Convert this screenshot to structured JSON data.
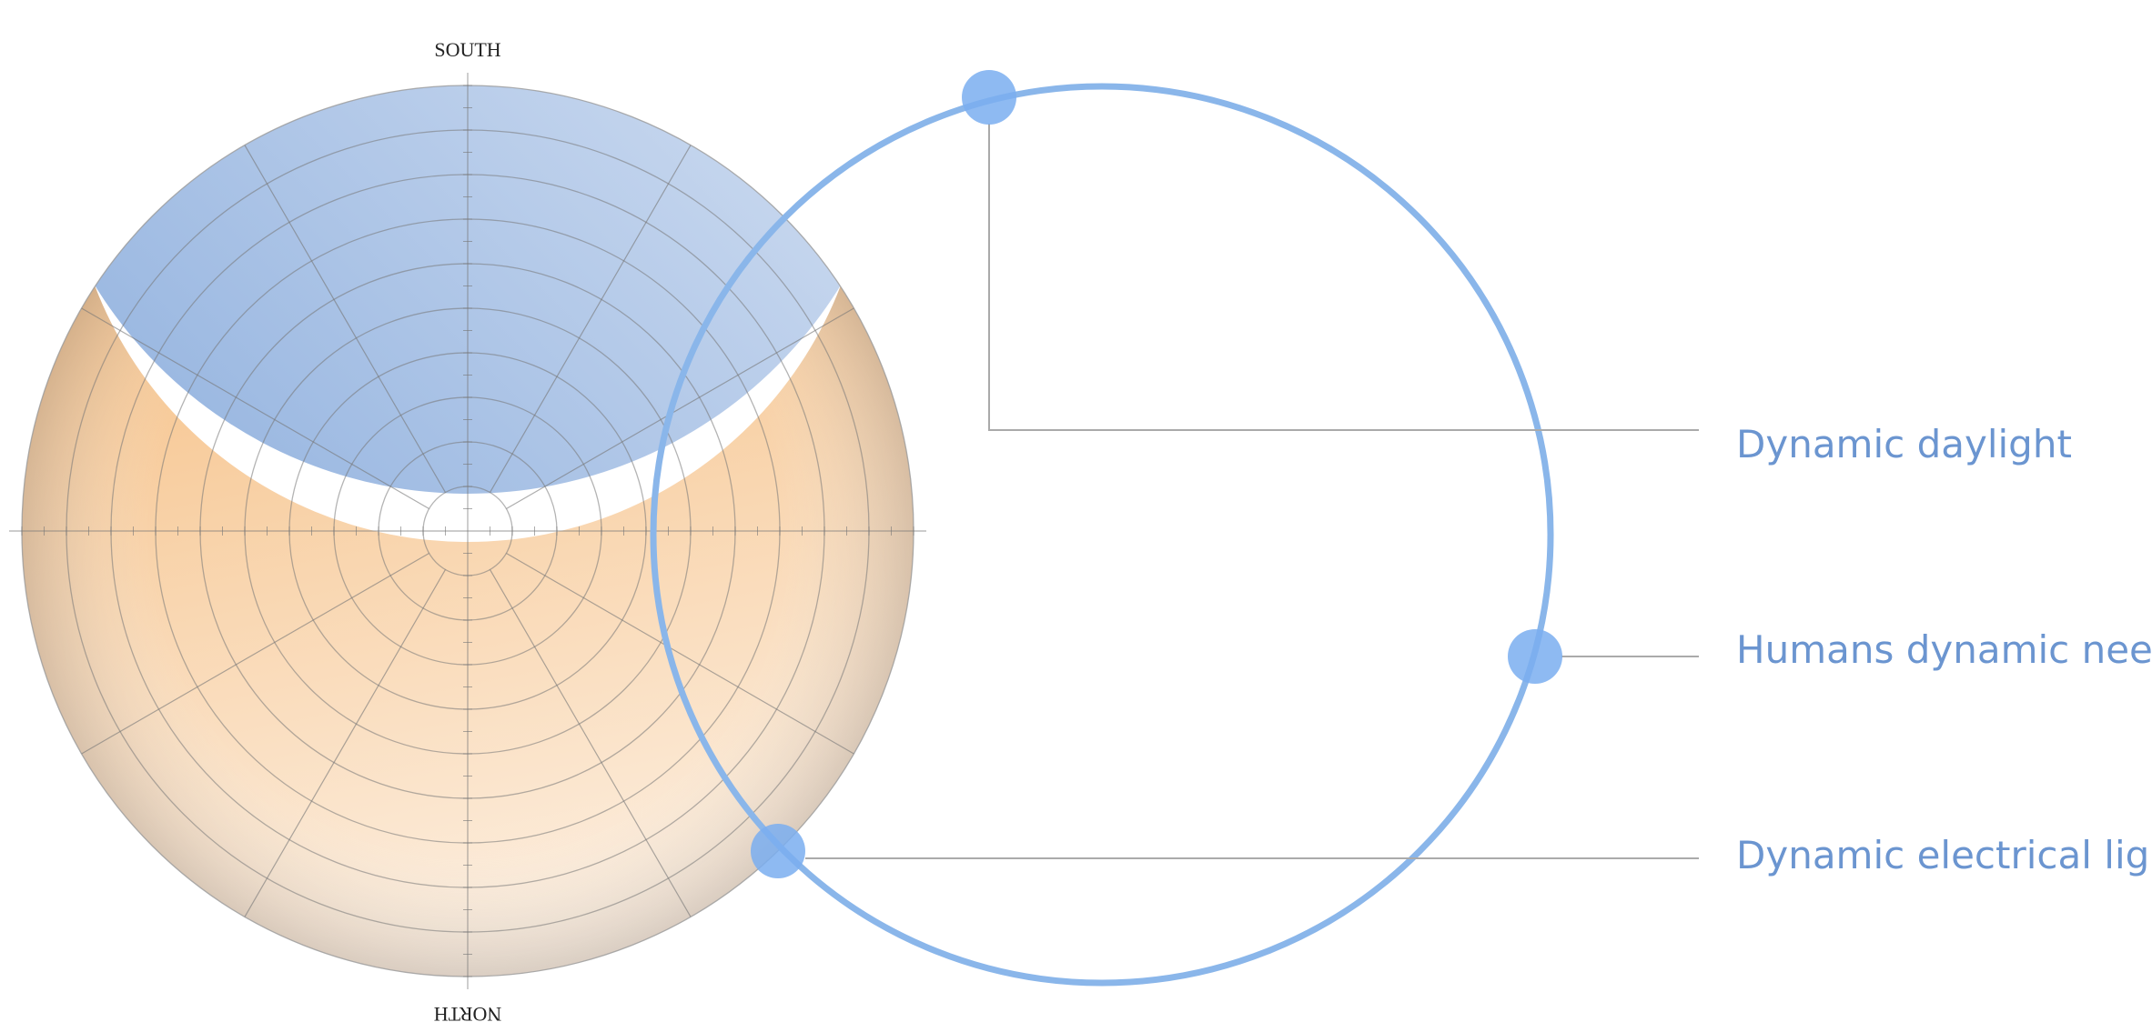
{
  "compass": {
    "top": "SOUTH",
    "bottom": "NORTH"
  },
  "labels": [
    "Dynamic daylight",
    "Humans dynamic needs",
    "Dynamic electrical light"
  ]
}
